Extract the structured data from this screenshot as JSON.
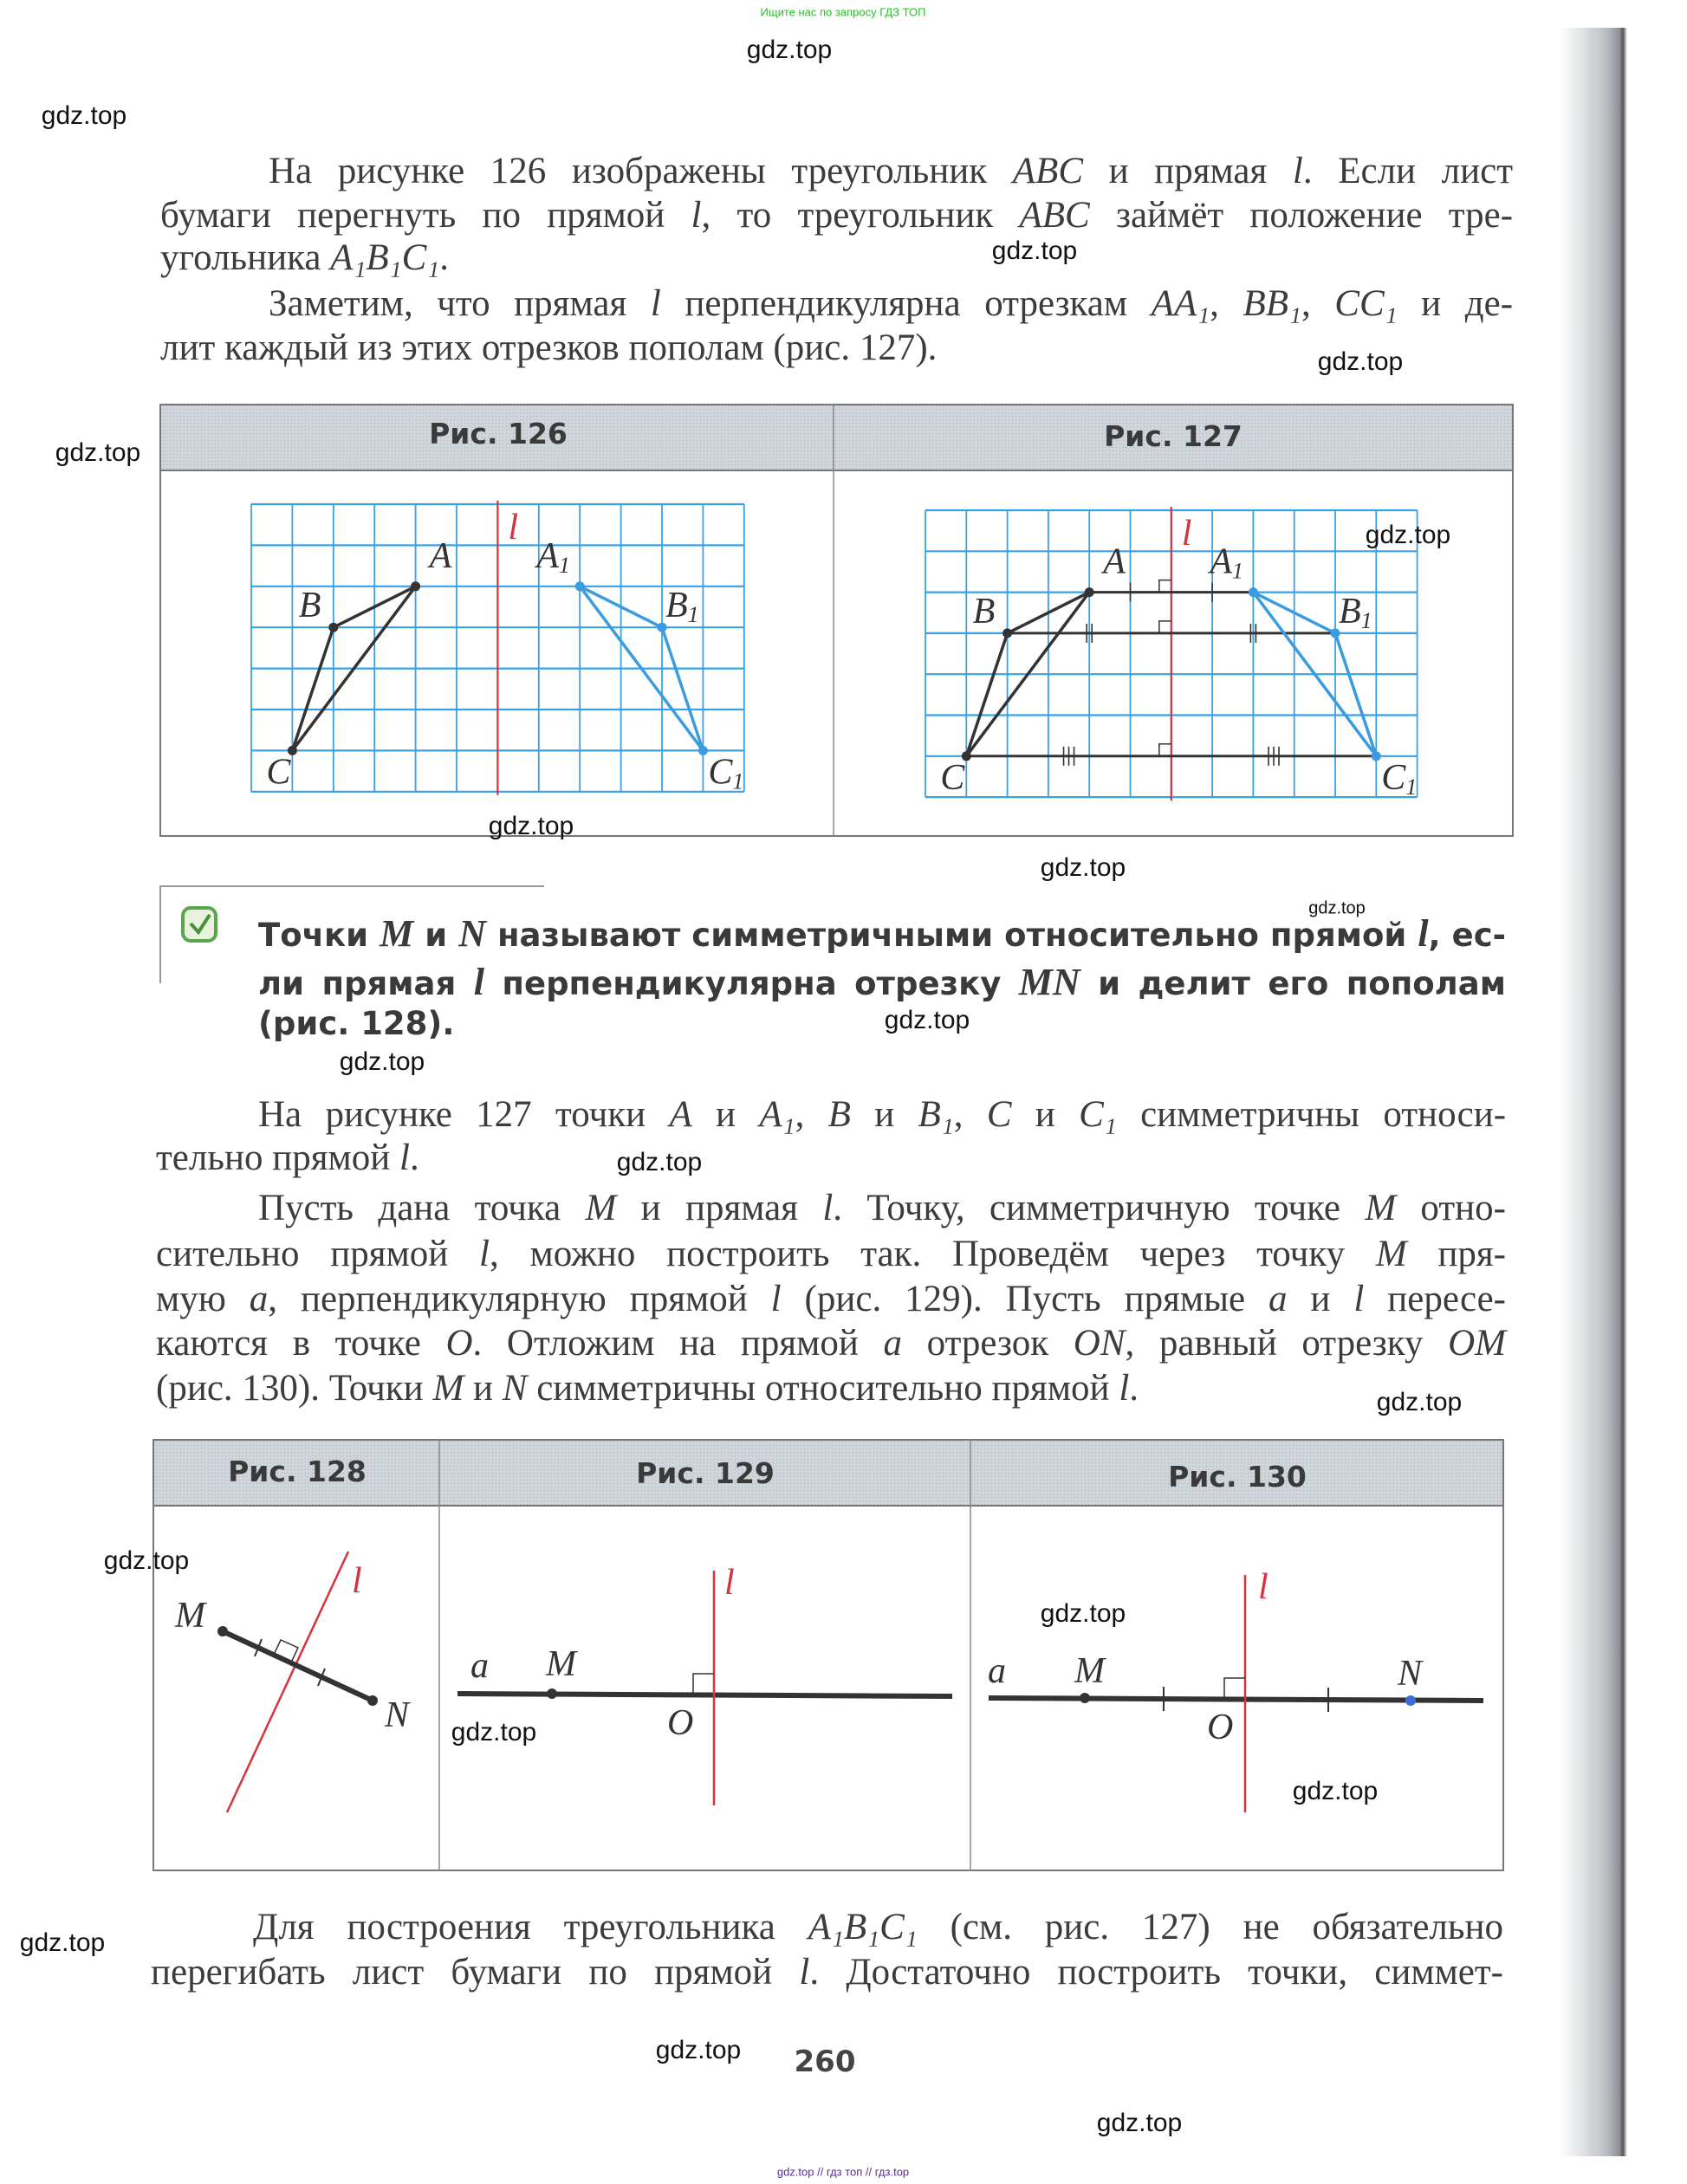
{
  "top_note": "Ищите нас по запросу ГДЗ ТОП",
  "footer_note": "gdz.top // гдз топ // гдз.top",
  "watermark": "gdz.top",
  "page_number": "260",
  "paragraph1": [
    "На рисунке 126 изображены треугольник ABC и прямая l. Если лист",
    "бумаги перегнуть по прямой l, то треугольник ABC займёт положение тре-",
    "угольника A₁B₁C₁.",
    "Заметим, что прямая l перпендикулярна отрезкам AA₁, BB₁, CC₁ и де-",
    "лит каждый из этих отрезков пополам (рис. 127)."
  ],
  "definition": [
    "Точки M и N называют симметричными относительно прямой l, ес-",
    "ли прямая l перпендикулярна отрезку MN и делит его пополам",
    "(рис. 128)."
  ],
  "paragraph2": [
    "На рисунке 127 точки A и A₁, B и B₁, C и C₁ симметричны относи-",
    "тельно прямой l.",
    "Пусть дана точка M и прямая l. Точку, симметричную точке M отно-",
    "сительно прямой l, можно построить так. Проведём через точку M пря-",
    "мую a, перпендикулярную прямой l (рис. 129). Пусть прямые a и l пересе-",
    "каются в точке O. Отложим на прямой a отрезок ON, равный отрезку OM",
    "(рис. 130). Точки M и N симметричны относительно прямой l."
  ],
  "paragraph3": [
    "Для построения треугольника A₁B₁C₁ (см. рис. 127) не обязательно",
    "перегибать лист бумаги по прямой l. Достаточно построить точки, симмет-"
  ],
  "figures": {
    "fig126": {
      "title": "Рис. 126",
      "labels": {
        "A": "A",
        "B": "B",
        "C": "C",
        "A1": "A",
        "B1": "B",
        "C1": "C",
        "sub": "1",
        "l": "l"
      }
    },
    "fig127": {
      "title": "Рис. 127",
      "labels": {
        "A": "A",
        "B": "B",
        "C": "C",
        "A1": "A",
        "B1": "B",
        "C1": "C",
        "sub": "1",
        "l": "l"
      }
    },
    "fig128": {
      "title": "Рис. 128",
      "labels": {
        "M": "M",
        "N": "N",
        "l": "l"
      }
    },
    "fig129": {
      "title": "Рис. 129",
      "labels": {
        "a": "a",
        "M": "M",
        "O": "O",
        "l": "l"
      }
    },
    "fig130": {
      "title": "Рис. 130",
      "labels": {
        "a": "a",
        "M": "M",
        "N": "N",
        "O": "O",
        "l": "l"
      }
    }
  },
  "colors": {
    "text": "#3c3c3c",
    "grid": "#3aa0e6",
    "line_l": "#d8323c",
    "reflected": "#3a9be0",
    "check_icon": "#5aa64a"
  },
  "icons": {
    "definition_marker": "check-square-icon"
  }
}
